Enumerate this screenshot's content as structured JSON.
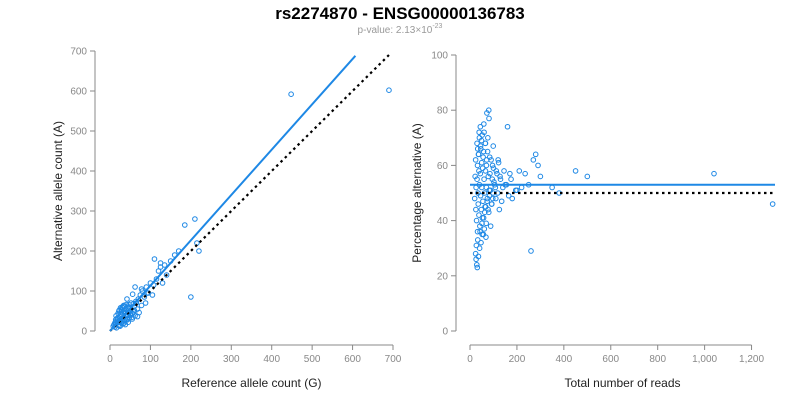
{
  "header": {
    "title": "rs2274870 - ENSG00000136783",
    "pvalue_prefix": "p-value: 2.13×10",
    "pvalue_exponent": "-23"
  },
  "colors": {
    "points": "#1e88e5",
    "fit_line": "#1e88e5",
    "reference_line": "#000000",
    "axis": "#888888"
  },
  "chart_data": [
    {
      "type": "scatter",
      "xlabel": "Reference allele count (G)",
      "ylabel": "Alternative allele count (A)",
      "xlim": [
        0,
        700
      ],
      "ylim": [
        0,
        700
      ],
      "x_ticks": [
        0,
        100,
        200,
        300,
        400,
        500,
        600,
        700
      ],
      "y_ticks": [
        0,
        100,
        200,
        300,
        400,
        500,
        600,
        700
      ],
      "x_tick_labels": [
        "0",
        "100",
        "200",
        "300",
        "400",
        "500",
        "600",
        "700"
      ],
      "y_tick_labels": [
        "0",
        "100",
        "200",
        "300",
        "400",
        "500",
        "600",
        "700"
      ],
      "grid": false,
      "fit_line": {
        "style": "solid",
        "x": [
          0,
          607
        ],
        "y": [
          0,
          688
        ]
      },
      "reference_line": {
        "style": "dotted",
        "x": [
          0,
          690
        ],
        "y": [
          0,
          690
        ]
      },
      "points": {
        "x": [
          8,
          10,
          12,
          14,
          15,
          16,
          18,
          20,
          22,
          24,
          25,
          26,
          28,
          30,
          32,
          34,
          35,
          36,
          38,
          40,
          42,
          44,
          45,
          46,
          48,
          50,
          52,
          55,
          58,
          60,
          62,
          65,
          68,
          70,
          72,
          75,
          78,
          80,
          85,
          88,
          90,
          95,
          100,
          105,
          110,
          115,
          120,
          125,
          130,
          140,
          150,
          160,
          170,
          185,
          200,
          210,
          215,
          220,
          448,
          690,
          12,
          14,
          18,
          20,
          22,
          26,
          30,
          32,
          36,
          40,
          44,
          48,
          52,
          56,
          60,
          64,
          68,
          24,
          28,
          33,
          37,
          41,
          46,
          50,
          54,
          58,
          15,
          19,
          23,
          27,
          31,
          35,
          39,
          43,
          47,
          51,
          28,
          34,
          42,
          56,
          62,
          78,
          92,
          108,
          125,
          135
        ],
        "y": [
          12,
          16,
          10,
          18,
          24,
          8,
          30,
          14,
          22,
          36,
          12,
          28,
          20,
          40,
          18,
          34,
          26,
          44,
          16,
          38,
          30,
          50,
          22,
          46,
          34,
          56,
          40,
          30,
          48,
          62,
          38,
          70,
          55,
          80,
          46,
          90,
          64,
          100,
          85,
          70,
          110,
          95,
          120,
          90,
          180,
          130,
          150,
          160,
          120,
          140,
          175,
          190,
          200,
          265,
          85,
          280,
          220,
          200,
          592,
          602,
          20,
          28,
          32,
          44,
          50,
          58,
          60,
          24,
          50,
          66,
          40,
          58,
          70,
          44,
          52,
          74,
          36,
          14,
          48,
          62,
          30,
          52,
          60,
          42,
          34,
          68,
          38,
          22,
          52,
          42,
          58,
          20,
          46,
          28,
          66,
          50,
          54,
          64,
          80,
          92,
          110,
          105,
          95,
          115,
          170,
          165
        ]
      }
    },
    {
      "type": "scatter",
      "xlabel": "Total number of reads",
      "ylabel": "Percentage alternative (A)",
      "xlim": [
        0,
        1300
      ],
      "ylim": [
        0,
        100
      ],
      "x_ticks": [
        0,
        200,
        400,
        600,
        800,
        1000,
        1200
      ],
      "y_ticks": [
        0,
        20,
        40,
        60,
        80,
        100
      ],
      "x_tick_labels": [
        "0",
        "200",
        "400",
        "600",
        "800",
        "1,000",
        "1,200"
      ],
      "y_tick_labels": [
        "0",
        "20",
        "40",
        "60",
        "80",
        "100"
      ],
      "grid": false,
      "fit_line": {
        "style": "solid",
        "x": [
          0,
          1300
        ],
        "y": [
          53,
          53
        ]
      },
      "reference_line": {
        "style": "dotted",
        "x": [
          0,
          1300
        ],
        "y": [
          50,
          50
        ]
      },
      "points": {
        "x": [
          20,
          22,
          24,
          25,
          26,
          28,
          30,
          30,
          32,
          32,
          34,
          35,
          36,
          38,
          38,
          40,
          40,
          42,
          44,
          45,
          46,
          48,
          50,
          50,
          52,
          54,
          55,
          56,
          58,
          60,
          60,
          62,
          64,
          65,
          66,
          68,
          70,
          70,
          72,
          74,
          75,
          78,
          80,
          80,
          82,
          85,
          88,
          90,
          92,
          95,
          98,
          100,
          105,
          110,
          115,
          120,
          125,
          130,
          140,
          150,
          160,
          170,
          180,
          200,
          210,
          220,
          250,
          260,
          270,
          280,
          290,
          300,
          350,
          380,
          450,
          500,
          1040,
          1290,
          24,
          27,
          29,
          33,
          36,
          41,
          43,
          47,
          51,
          53,
          57,
          61,
          63,
          67,
          69,
          73,
          77,
          83,
          87,
          93,
          97,
          102,
          108,
          118,
          128,
          135,
          145,
          155,
          165,
          175,
          195,
          235,
          33,
          37,
          45,
          49,
          58,
          71,
          76,
          84,
          96,
          112,
          26,
          31,
          39,
          44,
          52,
          59,
          66,
          81,
          99,
          122
        ],
        "y": [
          48,
          56,
          62,
          44,
          52,
          40,
          55,
          68,
          36,
          60,
          50,
          46,
          64,
          42,
          58,
          53,
          70,
          38,
          57,
          49,
          66,
          44,
          61,
          52,
          35,
          59,
          47,
          63,
          41,
          55,
          72,
          50,
          45,
          68,
          58,
          34,
          60,
          52,
          79,
          48,
          65,
          56,
          43,
          80,
          51,
          57,
          38,
          62,
          46,
          55,
          50,
          59,
          53,
          48,
          57,
          62,
          44,
          55,
          52,
          53,
          74,
          57,
          48,
          51,
          58,
          52,
          53,
          29,
          62,
          64,
          60,
          56,
          52,
          50,
          58,
          56,
          57,
          46,
          28,
          31,
          24,
          33,
          27,
          30,
          36,
          32,
          39,
          41,
          35,
          37,
          43,
          45,
          39,
          47,
          44,
          49,
          51,
          46,
          48,
          54,
          52,
          50,
          56,
          47,
          58,
          53,
          49,
          55,
          51,
          57,
          66,
          64,
          67,
          69,
          65,
          62,
          70,
          63,
          60,
          58,
          26,
          23,
          72,
          74,
          71,
          75,
          68,
          77,
          67,
          61
        ]
      }
    }
  ]
}
